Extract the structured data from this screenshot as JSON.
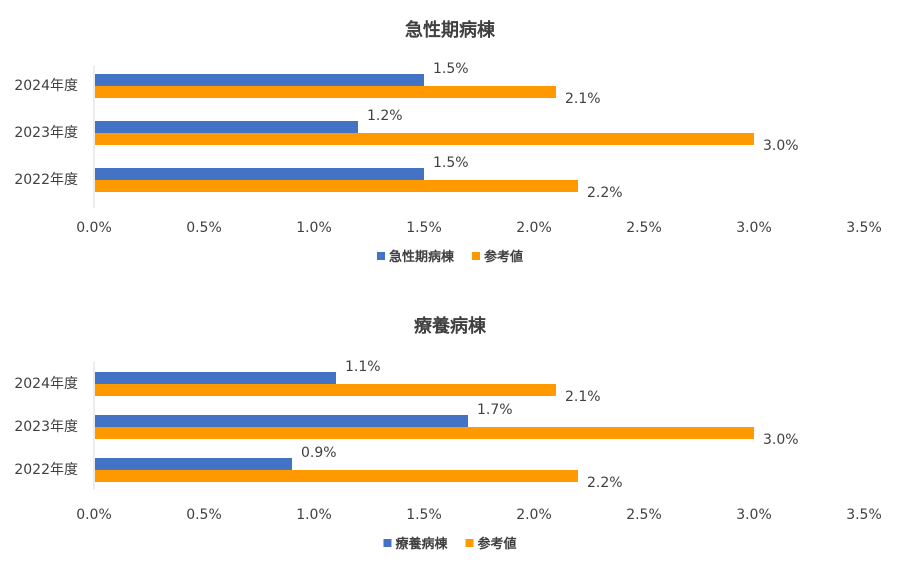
{
  "chart_data": [
    {
      "type": "bar",
      "orientation": "horizontal",
      "title": "急性期病棟",
      "categories": [
        "2024年度",
        "2023年度",
        "2022年度"
      ],
      "series": [
        {
          "name": "急性期病棟",
          "values": [
            1.5,
            1.2,
            1.5
          ],
          "labels": [
            "1.5%",
            "1.2%",
            "1.5%"
          ],
          "color": "#4472C4"
        },
        {
          "name": "参考値",
          "values": [
            2.1,
            3.0,
            2.2
          ],
          "labels": [
            "2.1%",
            "3.0%",
            "2.2%"
          ],
          "color": "#FF9900"
        }
      ],
      "xlim": [
        0,
        3.5
      ],
      "xticks": [
        "0.0%",
        "0.5%",
        "1.0%",
        "1.5%",
        "2.0%",
        "2.5%",
        "3.0%",
        "3.5%"
      ],
      "grid": false,
      "legend_position": "bottom"
    },
    {
      "type": "bar",
      "orientation": "horizontal",
      "title": "療養病棟",
      "categories": [
        "2024年度",
        "2023年度",
        "2022年度"
      ],
      "series": [
        {
          "name": "療養病棟",
          "values": [
            1.1,
            1.7,
            0.9
          ],
          "labels": [
            "1.1%",
            "1.7%",
            "0.9%"
          ],
          "color": "#4472C4"
        },
        {
          "name": "参考値",
          "values": [
            2.1,
            3.0,
            2.2
          ],
          "labels": [
            "2.1%",
            "3.0%",
            "2.2%"
          ],
          "color": "#FF9900"
        }
      ],
      "xlim": [
        0,
        3.5
      ],
      "xticks": [
        "0.0%",
        "0.5%",
        "1.0%",
        "1.5%",
        "2.0%",
        "2.5%",
        "3.0%",
        "3.5%"
      ],
      "grid": false,
      "legend_position": "bottom"
    }
  ]
}
